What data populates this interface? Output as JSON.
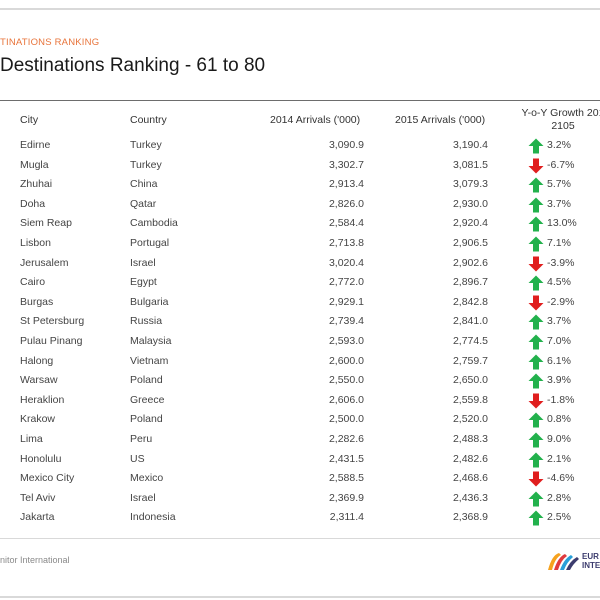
{
  "header": {
    "section_label": "TINATIONS RANKING",
    "title": "Destinations Ranking - 61 to 80"
  },
  "columns": {
    "city": "City",
    "country": "Country",
    "arrivals_2014": "2014 Arrivals ('000)",
    "arrivals_2015": "2015 Arrivals ('000)",
    "growth_line1": "Y-o-Y Growth 201",
    "growth_line2": "2105"
  },
  "rows": [
    {
      "city": "Edirne",
      "country": "Turkey",
      "a2014": "3,090.9",
      "a2015": "3,190.4",
      "growth": "3.2%",
      "trend": "up"
    },
    {
      "city": "Mugla",
      "country": "Turkey",
      "a2014": "3,302.7",
      "a2015": "3,081.5",
      "growth": "-6.7%",
      "trend": "down"
    },
    {
      "city": "Zhuhai",
      "country": "China",
      "a2014": "2,913.4",
      "a2015": "3,079.3",
      "growth": "5.7%",
      "trend": "up"
    },
    {
      "city": "Doha",
      "country": "Qatar",
      "a2014": "2,826.0",
      "a2015": "2,930.0",
      "growth": "3.7%",
      "trend": "up"
    },
    {
      "city": "Siem Reap",
      "country": "Cambodia",
      "a2014": "2,584.4",
      "a2015": "2,920.4",
      "growth": "13.0%",
      "trend": "up"
    },
    {
      "city": "Lisbon",
      "country": "Portugal",
      "a2014": "2,713.8",
      "a2015": "2,906.5",
      "growth": "7.1%",
      "trend": "up"
    },
    {
      "city": "Jerusalem",
      "country": "Israel",
      "a2014": "3,020.4",
      "a2015": "2,902.6",
      "growth": "-3.9%",
      "trend": "down"
    },
    {
      "city": "Cairo",
      "country": "Egypt",
      "a2014": "2,772.0",
      "a2015": "2,896.7",
      "growth": "4.5%",
      "trend": "up"
    },
    {
      "city": "Burgas",
      "country": "Bulgaria",
      "a2014": "2,929.1",
      "a2015": "2,842.8",
      "growth": "-2.9%",
      "trend": "down"
    },
    {
      "city": "St Petersburg",
      "country": "Russia",
      "a2014": "2,739.4",
      "a2015": "2,841.0",
      "growth": "3.7%",
      "trend": "up"
    },
    {
      "city": "Pulau Pinang",
      "country": "Malaysia",
      "a2014": "2,593.0",
      "a2015": "2,774.5",
      "growth": "7.0%",
      "trend": "up"
    },
    {
      "city": "Halong",
      "country": "Vietnam",
      "a2014": "2,600.0",
      "a2015": "2,759.7",
      "growth": "6.1%",
      "trend": "up"
    },
    {
      "city": "Warsaw",
      "country": "Poland",
      "a2014": "2,550.0",
      "a2015": "2,650.0",
      "growth": "3.9%",
      "trend": "up"
    },
    {
      "city": "Heraklion",
      "country": "Greece",
      "a2014": "2,606.0",
      "a2015": "2,559.8",
      "growth": "-1.8%",
      "trend": "down"
    },
    {
      "city": "Krakow",
      "country": "Poland",
      "a2014": "2,500.0",
      "a2015": "2,520.0",
      "growth": "0.8%",
      "trend": "up"
    },
    {
      "city": "Lima",
      "country": "Peru",
      "a2014": "2,282.6",
      "a2015": "2,488.3",
      "growth": "9.0%",
      "trend": "up"
    },
    {
      "city": "Honolulu",
      "country": "US",
      "a2014": "2,431.5",
      "a2015": "2,482.6",
      "growth": "2.1%",
      "trend": "up"
    },
    {
      "city": "Mexico City",
      "country": "Mexico",
      "a2014": "2,588.5",
      "a2015": "2,468.6",
      "growth": "-4.6%",
      "trend": "down"
    },
    {
      "city": "Tel Aviv",
      "country": "Israel",
      "a2014": "2,369.9",
      "a2015": "2,436.3",
      "growth": "2.8%",
      "trend": "up"
    },
    {
      "city": "Jakarta",
      "country": "Indonesia",
      "a2014": "2,311.4",
      "a2015": "2,368.9",
      "growth": "2.5%",
      "trend": "up"
    }
  ],
  "trend_icons": {
    "up": "arrow-up-icon",
    "down": "arrow-down-icon"
  },
  "colors": {
    "up": "#22b14c",
    "down": "#e01e1e",
    "accent": "#e8743b"
  },
  "footer": {
    "source": "nitor International",
    "logo_line1": "EUR",
    "logo_line2": "INTE"
  }
}
